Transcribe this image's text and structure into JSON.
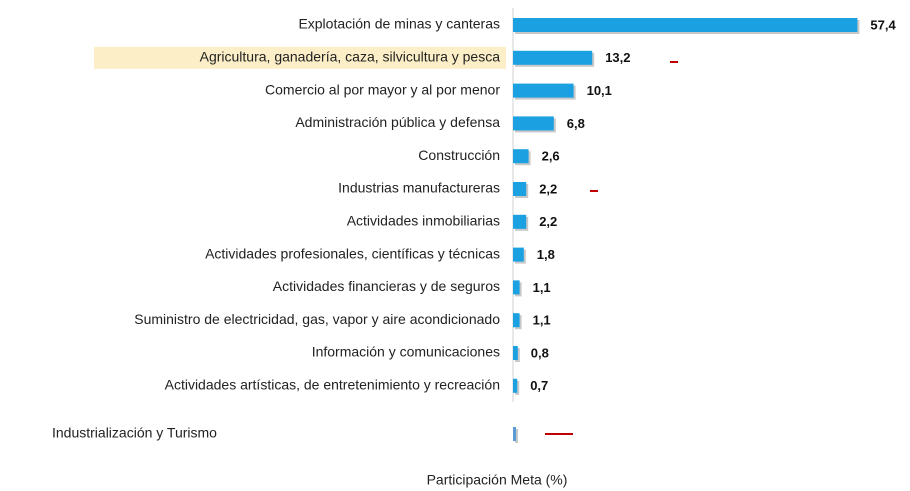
{
  "chart_data": {
    "type": "bar",
    "orientation": "horizontal",
    "categories": [
      "Explotación de minas y canteras",
      "Agricultura, ganadería, caza, silvicultura y pesca",
      "Comercio al por mayor y al por menor",
      "Administración pública y defensa",
      "Construcción",
      "Industrias manufactureras",
      "Actividades inmobiliarias",
      "Actividades profesionales, científicas y técnicas",
      "Actividades financieras y de seguros",
      "Suministro de electricidad, gas, vapor y aire acondicionado",
      "Información y comunicaciones",
      "Actividades artísticas, de entretenimiento y recreación"
    ],
    "values": [
      57.4,
      13.2,
      10.1,
      6.8,
      2.6,
      2.2,
      2.2,
      1.8,
      1.1,
      1.1,
      0.8,
      0.7
    ],
    "value_labels": [
      "57,4",
      "13,2",
      "10,1",
      "6,8",
      "2,6",
      "2,2",
      "2,2",
      "1,8",
      "1,1",
      "1,1",
      "0,8",
      "0,7"
    ],
    "color": "#1ba1e2",
    "highlight_color": "#fcefc8",
    "highlighted_category": 1,
    "extra_row": {
      "label": "Industrialización y Turismo",
      "value": 0.5,
      "color": "#5b9bd5"
    },
    "xlabel": "Participación Meta (%)",
    "xlim": [
      0,
      60
    ]
  }
}
